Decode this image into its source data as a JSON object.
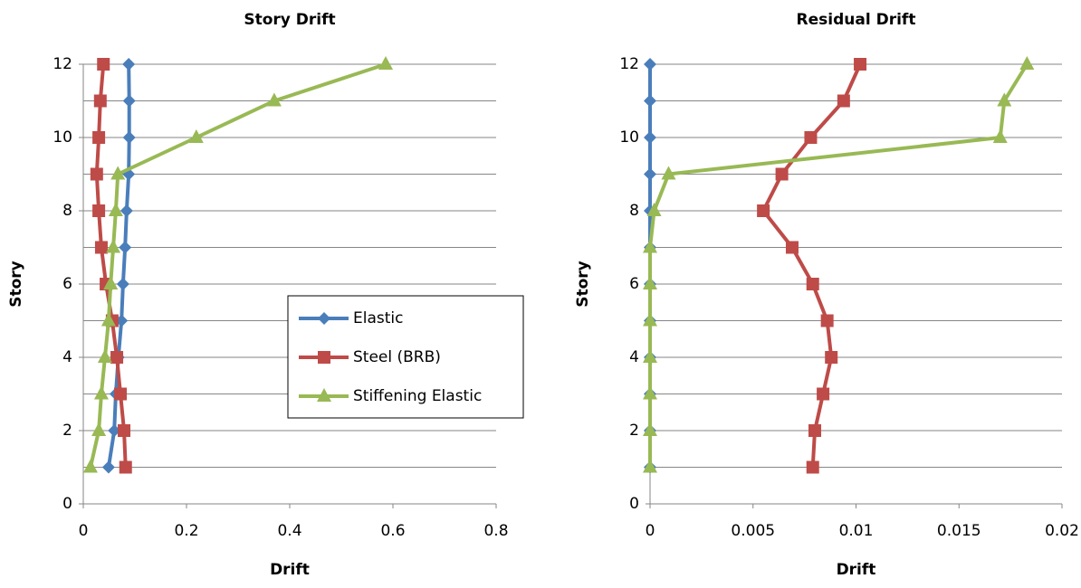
{
  "chart_data": [
    {
      "type": "line",
      "title": "Story Drift",
      "xlabel": "Drift",
      "ylabel": "Story",
      "xlim": [
        0,
        0.8
      ],
      "xticks": [
        0,
        0.2,
        0.4,
        0.6,
        0.8
      ],
      "ylim": [
        0,
        12
      ],
      "yticks": [
        0,
        2,
        4,
        6,
        8,
        10,
        12
      ],
      "minor_yticks": [
        1,
        3,
        5,
        7,
        9,
        11
      ],
      "grid": true,
      "legend": true,
      "series": [
        {
          "name": "Elastic",
          "color": "#4a7ebb",
          "marker": "diamond",
          "x": [
            0.049,
            0.06,
            0.063,
            0.068,
            0.074,
            0.077,
            0.081,
            0.084,
            0.088,
            0.089,
            0.089,
            0.088
          ],
          "values": [
            1,
            2,
            3,
            4,
            5,
            6,
            7,
            8,
            9,
            10,
            11,
            12
          ]
        },
        {
          "name": "Steel (BRB)",
          "color": "#be4b48",
          "marker": "square",
          "x": [
            0.082,
            0.079,
            0.072,
            0.065,
            0.056,
            0.044,
            0.035,
            0.03,
            0.026,
            0.03,
            0.033,
            0.039
          ],
          "values": [
            1,
            2,
            3,
            4,
            5,
            6,
            7,
            8,
            9,
            10,
            11,
            12
          ]
        },
        {
          "name": "Stiffening Elastic",
          "color": "#98b954",
          "marker": "triangle",
          "x": [
            0.014,
            0.03,
            0.035,
            0.042,
            0.049,
            0.053,
            0.058,
            0.063,
            0.067,
            0.219,
            0.37,
            0.586
          ],
          "values": [
            1,
            2,
            3,
            4,
            5,
            6,
            7,
            8,
            9,
            10,
            11,
            12
          ]
        }
      ]
    },
    {
      "type": "line",
      "title": "Residual Drift",
      "xlabel": "Drift",
      "ylabel": "Story",
      "xlim": [
        0,
        0.02
      ],
      "xticks": [
        0,
        0.005,
        0.01,
        0.015,
        0.02
      ],
      "ylim": [
        0,
        12
      ],
      "yticks": [
        0,
        2,
        4,
        6,
        8,
        10,
        12
      ],
      "minor_yticks": [
        1,
        3,
        5,
        7,
        9,
        11
      ],
      "grid": true,
      "legend": false,
      "series": [
        {
          "color": "#4a7ebb",
          "marker": "diamond",
          "x": [
            0,
            0,
            0,
            0,
            0,
            0,
            0,
            0,
            0,
            0,
            0,
            0
          ],
          "values": [
            1,
            2,
            3,
            4,
            5,
            6,
            7,
            8,
            9,
            10,
            11,
            12
          ]
        },
        {
          "color": "#be4b48",
          "marker": "square",
          "x": [
            0.0079,
            0.008,
            0.0084,
            0.0088,
            0.0086,
            0.0079,
            0.0069,
            0.0055,
            0.0064,
            0.0078,
            0.0094,
            0.0102
          ],
          "values": [
            1,
            2,
            3,
            4,
            5,
            6,
            7,
            8,
            9,
            10,
            11,
            12
          ]
        },
        {
          "color": "#98b954",
          "marker": "triangle",
          "x": [
            0,
            0,
            0,
            0,
            0,
            0,
            0,
            0.0002,
            0.0009,
            0.017,
            0.0172,
            0.0183
          ],
          "values": [
            1,
            2,
            3,
            4,
            5,
            6,
            7,
            8,
            9,
            10,
            11,
            12
          ]
        }
      ]
    }
  ]
}
